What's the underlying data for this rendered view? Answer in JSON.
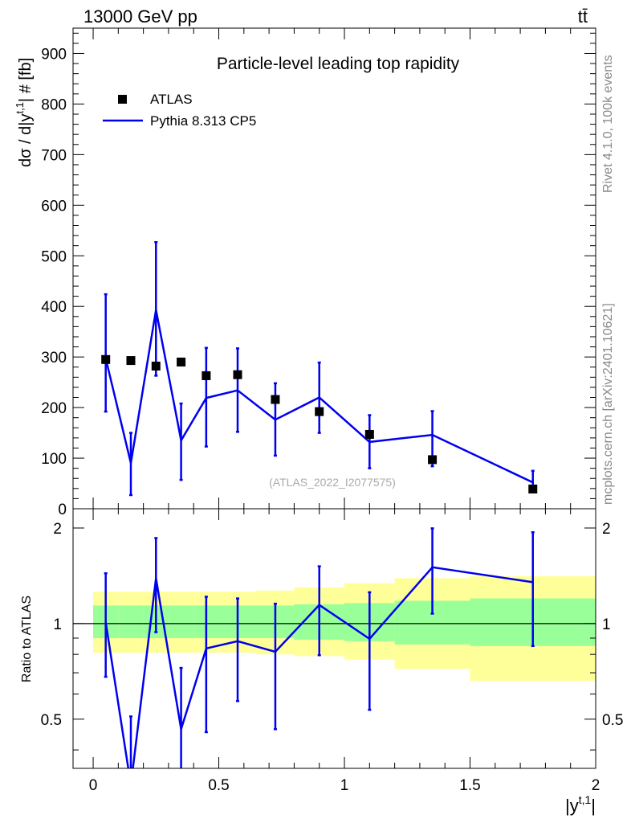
{
  "header": {
    "left": "13000 GeV pp",
    "right": "tt̄"
  },
  "side_labels": {
    "rivet": "Rivet 4.1.0,  100k events",
    "mcplots": "mcplots.cern.ch [arXiv:2401.10621]"
  },
  "chart_data": [
    {
      "type": "scatter",
      "panel": "main",
      "title": "Particle-level leading top rapidity",
      "watermark": "(ATLAS_2022_I2077575)",
      "xlabel": "",
      "ylabel": "dσ / d|y",
      "ylabel_sup": "t,1",
      "ylabel_tail": "| # [fb]",
      "xlim": [
        -0.08,
        2.0
      ],
      "ylim": [
        0,
        950
      ],
      "yticks": [
        0,
        100,
        200,
        300,
        400,
        500,
        600,
        700,
        800,
        900
      ],
      "ytick_labels": [
        "0",
        "100",
        "200",
        "300",
        "400",
        "500",
        "600",
        "700",
        "800",
        "900"
      ],
      "legend": {
        "placement": "top-left",
        "entries": [
          {
            "name": "ATLAS",
            "marker": "square",
            "color": "#000000"
          },
          {
            "name": "Pythia 8.313 CP5",
            "marker": "line",
            "color": "#0000ee"
          }
        ]
      },
      "series": [
        {
          "name": "ATLAS",
          "x": [
            0.05,
            0.15,
            0.25,
            0.35,
            0.45,
            0.575,
            0.725,
            0.9,
            1.1,
            1.35,
            1.75
          ],
          "values": [
            295,
            293,
            282,
            290,
            263,
            265,
            216,
            192,
            147,
            97,
            39
          ]
        },
        {
          "name": "Pythia 8.313 CP5",
          "x": [
            0.05,
            0.15,
            0.25,
            0.35,
            0.45,
            0.575,
            0.725,
            0.9,
            1.1,
            1.35,
            1.75
          ],
          "values": [
            297,
            90,
            393,
            135,
            219,
            234,
            176,
            220,
            132,
            146,
            52
          ],
          "err_low": [
            105,
            63,
            130,
            78,
            96,
            82,
            71,
            70,
            52,
            62,
            14
          ],
          "err_high": [
            127,
            60,
            134,
            73,
            99,
            83,
            72,
            69,
            53,
            47,
            23
          ]
        }
      ]
    },
    {
      "type": "line",
      "panel": "ratio",
      "xlabel": "|y",
      "xlabel_sup": "t,1",
      "xlabel_tail": "|",
      "ylabel": "Ratio to ATLAS",
      "xlim": [
        -0.08,
        2.0
      ],
      "ylim": [
        0.35,
        2.3
      ],
      "xticks": [
        0,
        0.5,
        1,
        1.5,
        2
      ],
      "xtick_labels": [
        "0",
        "0.5",
        "1",
        "1.5",
        "2"
      ],
      "yticks": [
        0.5,
        1,
        2
      ],
      "ytick_labels": [
        "0.5",
        "1",
        "2"
      ],
      "bands": {
        "bin_edges": [
          0,
          0.1,
          0.2,
          0.3,
          0.4,
          0.5,
          0.65,
          0.8,
          1.0,
          1.2,
          1.5,
          2.0
        ],
        "inner_low": [
          0.9,
          0.9,
          0.9,
          0.9,
          0.9,
          0.9,
          0.9,
          0.89,
          0.88,
          0.86,
          0.85
        ],
        "inner_high": [
          1.14,
          1.14,
          1.14,
          1.14,
          1.14,
          1.14,
          1.14,
          1.15,
          1.16,
          1.18,
          1.2
        ],
        "outer_low": [
          0.81,
          0.81,
          0.81,
          0.81,
          0.81,
          0.81,
          0.8,
          0.79,
          0.77,
          0.72,
          0.66
        ],
        "outer_high": [
          1.26,
          1.26,
          1.26,
          1.26,
          1.26,
          1.26,
          1.27,
          1.3,
          1.34,
          1.39,
          1.41
        ],
        "inner_color": "#99ff99",
        "outer_color": "#ffff99"
      },
      "series": [
        {
          "name": "Pythia 8.313 CP5 / ATLAS",
          "x": [
            0.05,
            0.15,
            0.25,
            0.35,
            0.45,
            0.575,
            0.725,
            0.9,
            1.1,
            1.35,
            1.75
          ],
          "values": [
            1.01,
            0.31,
            1.39,
            0.465,
            0.835,
            0.88,
            0.815,
            1.145,
            0.895,
            1.505,
            1.35
          ],
          "err_low": [
            0.33,
            0.2,
            0.45,
            0.27,
            0.38,
            0.31,
            0.35,
            0.35,
            0.36,
            0.43,
            0.5
          ],
          "err_high": [
            0.43,
            0.2,
            0.47,
            0.26,
            0.38,
            0.32,
            0.34,
            0.37,
            0.36,
            0.49,
            0.59
          ]
        }
      ],
      "reference_line": 1
    }
  ],
  "colors": {
    "mc": "#0000ee",
    "data": "#000000",
    "watermark": "#aaaaaa",
    "side_text": "#888888"
  }
}
